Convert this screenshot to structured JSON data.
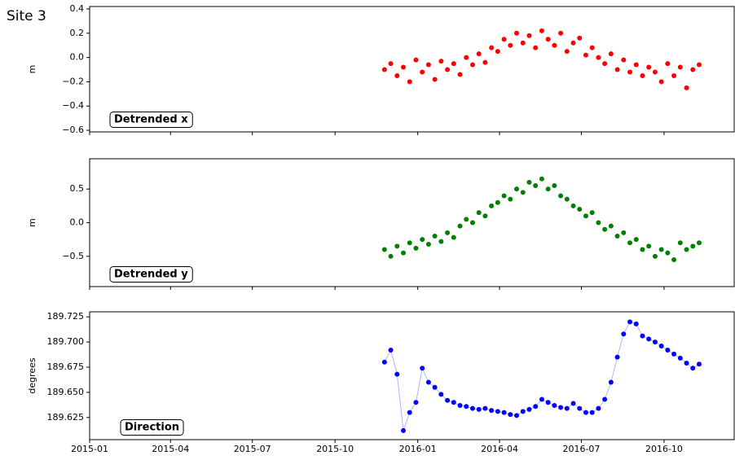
{
  "suptitle": "Site 3",
  "chart_data": [
    {
      "type": "scatter",
      "ylabel": "m",
      "annotation": "Detrended x",
      "color": "#ff0000",
      "xlim": [
        "2015-01-01",
        "2016-12-18"
      ],
      "xticks": [
        "2015-01",
        "2015-04",
        "2015-07",
        "2015-10",
        "2016-01",
        "2016-04",
        "2016-07",
        "2016-10"
      ],
      "ylim": [
        -0.613,
        0.42
      ],
      "yticks": [
        {
          "value": -0.6,
          "label": "−0.6"
        },
        {
          "value": -0.4,
          "label": "−0.4"
        },
        {
          "value": -0.2,
          "label": "−0.2"
        },
        {
          "value": 0,
          "label": "0.0"
        },
        {
          "value": 0.2,
          "label": "0.2"
        },
        {
          "value": 0.4,
          "label": "0.4"
        }
      ],
      "x": [
        "2015-11-25",
        "2015-12-02",
        "2015-12-09",
        "2015-12-16",
        "2015-12-23",
        "2015-12-30",
        "2016-01-06",
        "2016-01-13",
        "2016-01-20",
        "2016-01-27",
        "2016-02-03",
        "2016-02-10",
        "2016-02-17",
        "2016-02-24",
        "2016-03-02",
        "2016-03-09",
        "2016-03-16",
        "2016-03-23",
        "2016-03-30",
        "2016-04-06",
        "2016-04-13",
        "2016-04-20",
        "2016-04-27",
        "2016-05-04",
        "2016-05-11",
        "2016-05-18",
        "2016-05-25",
        "2016-06-01",
        "2016-06-08",
        "2016-06-15",
        "2016-06-22",
        "2016-06-29",
        "2016-07-06",
        "2016-07-13",
        "2016-07-20",
        "2016-07-27",
        "2016-08-03",
        "2016-08-10",
        "2016-08-17",
        "2016-08-24",
        "2016-08-31",
        "2016-09-07",
        "2016-09-14",
        "2016-09-21",
        "2016-09-28",
        "2016-10-05",
        "2016-10-12",
        "2016-10-19",
        "2016-10-26",
        "2016-11-02",
        "2016-11-09"
      ],
      "values": [
        -0.1,
        -0.05,
        -0.15,
        -0.08,
        -0.2,
        -0.02,
        -0.12,
        -0.06,
        -0.18,
        -0.03,
        -0.1,
        -0.05,
        -0.14,
        0.0,
        -0.06,
        0.03,
        -0.04,
        0.08,
        0.05,
        0.15,
        0.1,
        0.2,
        0.12,
        0.18,
        0.08,
        0.22,
        0.15,
        0.1,
        0.2,
        0.05,
        0.12,
        0.16,
        0.02,
        0.08,
        0.0,
        -0.05,
        0.03,
        -0.1,
        -0.02,
        -0.12,
        -0.06,
        -0.15,
        -0.08,
        -0.12,
        -0.2,
        -0.05,
        -0.15,
        -0.08,
        -0.25,
        -0.1,
        -0.06
      ]
    },
    {
      "type": "scatter",
      "ylabel": "m",
      "annotation": "Detrended y",
      "color": "#008000",
      "xlim": [
        "2015-01-01",
        "2016-12-18"
      ],
      "xticks": [
        "2015-01",
        "2015-04",
        "2015-07",
        "2015-10",
        "2016-01",
        "2016-04",
        "2016-07",
        "2016-10"
      ],
      "ylim": [
        -0.95,
        0.95
      ],
      "yticks": [
        {
          "value": -0.5,
          "label": "−0.5"
        },
        {
          "value": 0,
          "label": "0.0"
        },
        {
          "value": 0.5,
          "label": "0.5"
        }
      ],
      "x": [
        "2015-11-25",
        "2015-12-02",
        "2015-12-09",
        "2015-12-16",
        "2015-12-23",
        "2015-12-30",
        "2016-01-06",
        "2016-01-13",
        "2016-01-20",
        "2016-01-27",
        "2016-02-03",
        "2016-02-10",
        "2016-02-17",
        "2016-02-24",
        "2016-03-02",
        "2016-03-09",
        "2016-03-16",
        "2016-03-23",
        "2016-03-30",
        "2016-04-06",
        "2016-04-13",
        "2016-04-20",
        "2016-04-27",
        "2016-05-04",
        "2016-05-11",
        "2016-05-18",
        "2016-05-25",
        "2016-06-01",
        "2016-06-08",
        "2016-06-15",
        "2016-06-22",
        "2016-06-29",
        "2016-07-06",
        "2016-07-13",
        "2016-07-20",
        "2016-07-27",
        "2016-08-03",
        "2016-08-10",
        "2016-08-17",
        "2016-08-24",
        "2016-08-31",
        "2016-09-07",
        "2016-09-14",
        "2016-09-21",
        "2016-09-28",
        "2016-10-05",
        "2016-10-12",
        "2016-10-19",
        "2016-10-26",
        "2016-11-02",
        "2016-11-09"
      ],
      "values": [
        -0.4,
        -0.5,
        -0.35,
        -0.45,
        -0.3,
        -0.38,
        -0.25,
        -0.32,
        -0.2,
        -0.28,
        -0.15,
        -0.22,
        -0.05,
        0.05,
        0.0,
        0.15,
        0.1,
        0.25,
        0.3,
        0.4,
        0.35,
        0.5,
        0.45,
        0.6,
        0.55,
        0.65,
        0.5,
        0.55,
        0.4,
        0.35,
        0.25,
        0.2,
        0.1,
        0.15,
        0.0,
        -0.1,
        -0.05,
        -0.2,
        -0.15,
        -0.3,
        -0.25,
        -0.4,
        -0.35,
        -0.5,
        -0.4,
        -0.45,
        -0.55,
        -0.3,
        -0.4,
        -0.35,
        -0.3
      ]
    },
    {
      "type": "line",
      "ylabel": "degrees",
      "annotation": "Direction",
      "color": "#0000ff",
      "xlim": [
        "2015-01-01",
        "2016-12-18"
      ],
      "xticks": [
        "2015-01",
        "2015-04",
        "2015-07",
        "2015-10",
        "2016-01",
        "2016-04",
        "2016-07",
        "2016-10"
      ],
      "ylim": [
        189.603,
        189.73
      ],
      "yticks": [
        {
          "value": 189.625,
          "label": "189.625"
        },
        {
          "value": 189.65,
          "label": "189.650"
        },
        {
          "value": 189.675,
          "label": "189.675"
        },
        {
          "value": 189.7,
          "label": "189.700"
        },
        {
          "value": 189.725,
          "label": "189.725"
        }
      ],
      "x": [
        "2015-11-25",
        "2015-12-02",
        "2015-12-09",
        "2015-12-16",
        "2015-12-23",
        "2015-12-30",
        "2016-01-06",
        "2016-01-13",
        "2016-01-20",
        "2016-01-27",
        "2016-02-03",
        "2016-02-10",
        "2016-02-17",
        "2016-02-24",
        "2016-03-02",
        "2016-03-09",
        "2016-03-16",
        "2016-03-23",
        "2016-03-30",
        "2016-04-06",
        "2016-04-13",
        "2016-04-20",
        "2016-04-27",
        "2016-05-04",
        "2016-05-11",
        "2016-05-18",
        "2016-05-25",
        "2016-06-01",
        "2016-06-08",
        "2016-06-15",
        "2016-06-22",
        "2016-06-29",
        "2016-07-06",
        "2016-07-13",
        "2016-07-20",
        "2016-07-27",
        "2016-08-03",
        "2016-08-10",
        "2016-08-17",
        "2016-08-24",
        "2016-08-31",
        "2016-09-07",
        "2016-09-14",
        "2016-09-21",
        "2016-09-28",
        "2016-10-05",
        "2016-10-12",
        "2016-10-19",
        "2016-10-26",
        "2016-11-02",
        "2016-11-09"
      ],
      "values": [
        189.68,
        189.692,
        189.668,
        189.612,
        189.63,
        189.64,
        189.674,
        189.66,
        189.655,
        189.648,
        189.642,
        189.64,
        189.637,
        189.636,
        189.634,
        189.633,
        189.634,
        189.632,
        189.631,
        189.63,
        189.628,
        189.627,
        189.631,
        189.633,
        189.636,
        189.643,
        189.64,
        189.637,
        189.635,
        189.634,
        189.639,
        189.634,
        189.63,
        189.63,
        189.634,
        189.643,
        189.66,
        189.685,
        189.708,
        189.72,
        189.718,
        189.706,
        189.703,
        189.7,
        189.696,
        189.692,
        189.688,
        189.684,
        189.679,
        189.674,
        189.678
      ]
    }
  ]
}
